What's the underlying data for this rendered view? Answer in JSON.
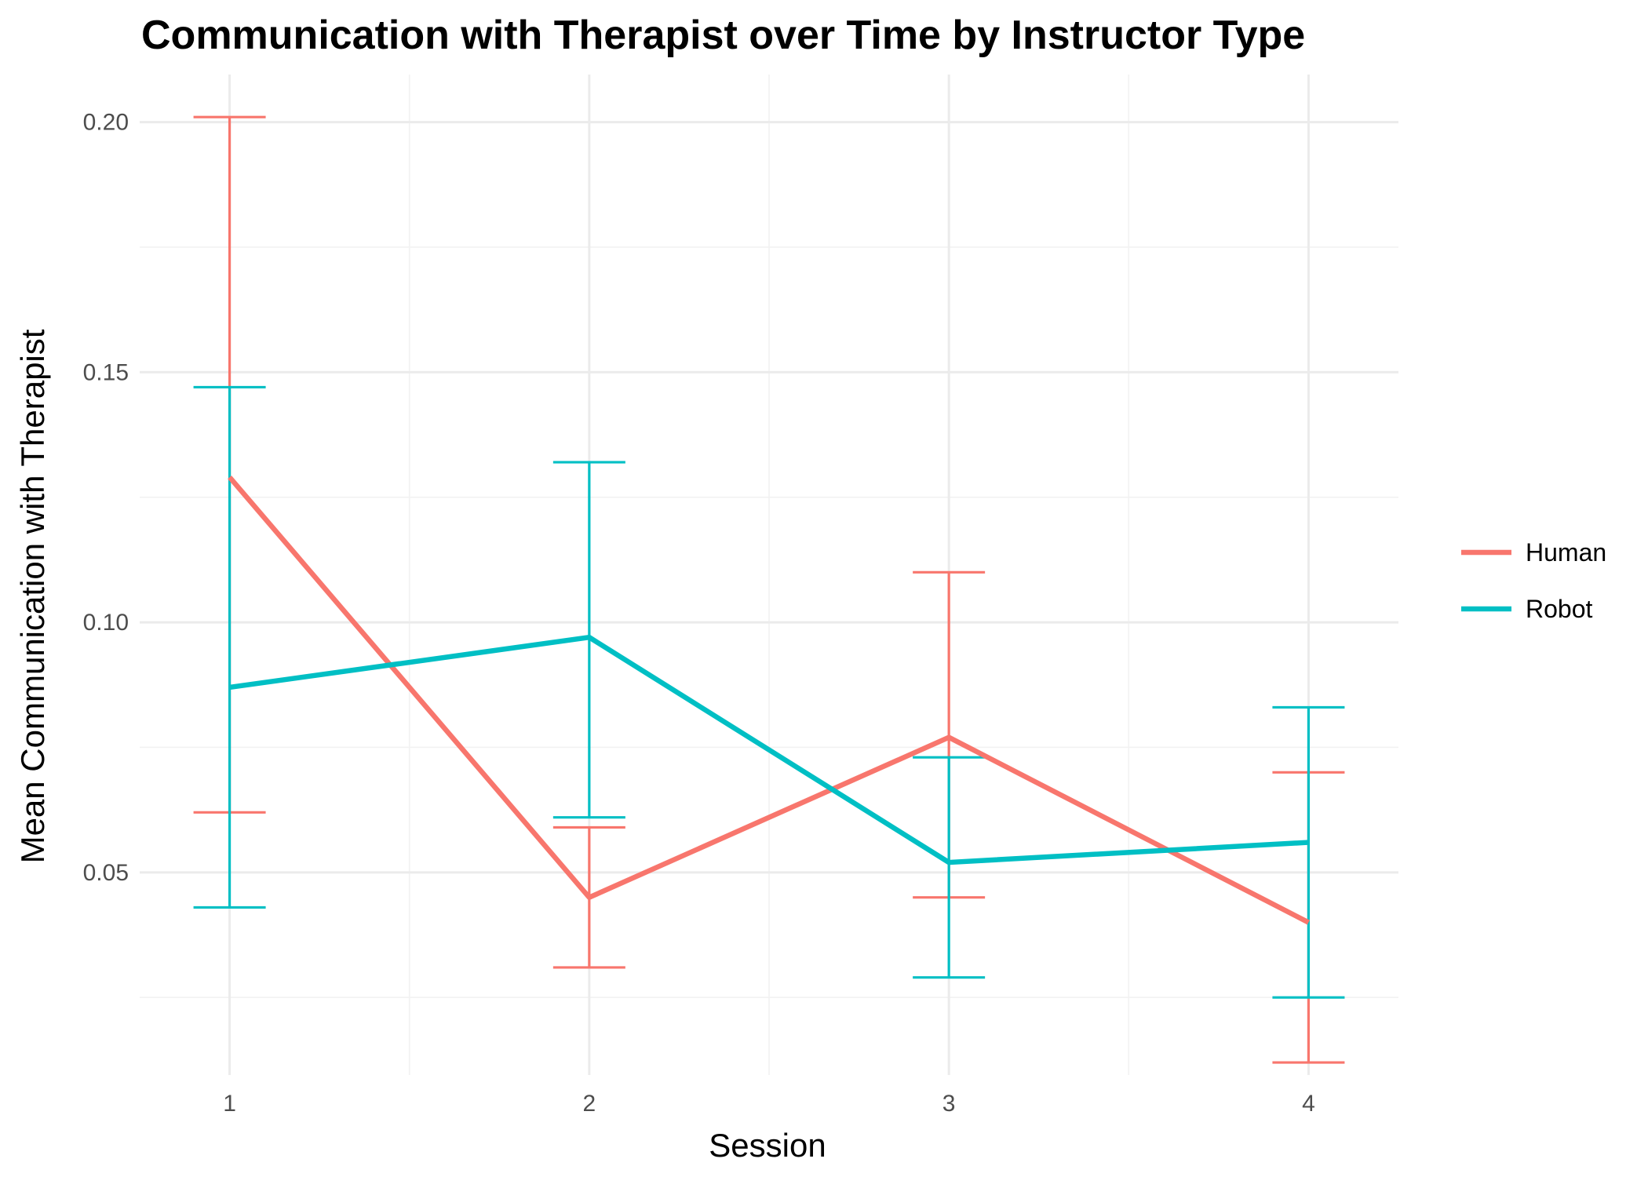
{
  "chart_data": {
    "type": "line",
    "title": "Communication with Therapist over Time by Instructor Type",
    "xlabel": "Session",
    "ylabel": "Mean Communication with Therapist",
    "x": [
      1,
      2,
      3,
      4
    ],
    "x_tick_labels": [
      "1",
      "2",
      "3",
      "4"
    ],
    "xlim": [
      0.75,
      4.25
    ],
    "ylim": [
      0.0095,
      0.2095
    ],
    "y_ticks": [
      0.05,
      0.1,
      0.15,
      0.2
    ],
    "y_tick_labels": [
      "0.05",
      "0.10",
      "0.15",
      "0.20"
    ],
    "grid": true,
    "legend_position": "right",
    "series": [
      {
        "name": "Human",
        "color": "#F8766D",
        "values": [
          0.129,
          0.045,
          0.077,
          0.04
        ],
        "error_low": [
          0.062,
          0.031,
          0.045,
          0.012
        ],
        "error_high": [
          0.201,
          0.059,
          0.11,
          0.07
        ]
      },
      {
        "name": "Robot",
        "color": "#00BFC4",
        "values": [
          0.087,
          0.097,
          0.052,
          0.056
        ],
        "error_low": [
          0.043,
          0.061,
          0.029,
          0.025
        ],
        "error_high": [
          0.147,
          0.132,
          0.073,
          0.083
        ]
      }
    ]
  }
}
